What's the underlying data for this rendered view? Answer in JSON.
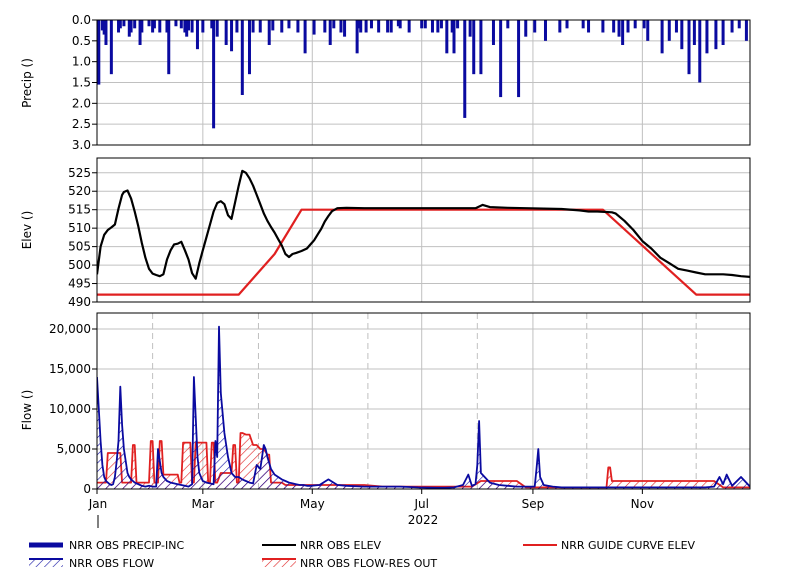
{
  "year_label": "2022",
  "month_ticks": [
    "Jan",
    "Mar",
    "May",
    "Jul",
    "Sep",
    "Nov"
  ],
  "colors": {
    "precip": "#0a0aa0",
    "elev": "#000000",
    "guide": "#e02020",
    "flow": "#0a0aa0",
    "res_out": "#e02020",
    "grid": "#c0c0c0"
  },
  "legend": [
    {
      "label": "NRR OBS PRECIP-INC",
      "style": "thick-line",
      "color": "#0a0aa0"
    },
    {
      "label": "NRR OBS ELEV",
      "style": "line",
      "color": "#000000"
    },
    {
      "label": "NRR GUIDE CURVE ELEV",
      "style": "line",
      "color": "#e02020"
    },
    {
      "label": "NRR OBS FLOW",
      "style": "hatch",
      "color": "#0a0aa0"
    },
    {
      "label": "NRR OBS FLOW-RES OUT",
      "style": "hatch",
      "color": "#e02020"
    }
  ],
  "chart_data": [
    {
      "type": "bar",
      "ylabel": "Precip ()",
      "ylim": [
        0,
        3.0
      ],
      "y_inverted": true,
      "yticks": [
        "0.0",
        "0.5",
        "1.0",
        "1.5",
        "2.0",
        "2.5",
        "3.0"
      ],
      "x_unit": "day of year 2022",
      "series": [
        {
          "name": "NRR OBS PRECIP-INC",
          "x": [
            1,
            2,
            4,
            5,
            6,
            9,
            13,
            14,
            16,
            19,
            20,
            22,
            25,
            26,
            30,
            32,
            33,
            36,
            40,
            41,
            45,
            48,
            50,
            51,
            52,
            54,
            57,
            60,
            65,
            66,
            68,
            73,
            76,
            79,
            82,
            86,
            88,
            92,
            97,
            99,
            104,
            108,
            113,
            117,
            122,
            128,
            131,
            133,
            137,
            139,
            146,
            147,
            148,
            151,
            154,
            158,
            163,
            165,
            169,
            170,
            175,
            182,
            184,
            188,
            191,
            193,
            196,
            199,
            200,
            202,
            206,
            209,
            211,
            215,
            222,
            226,
            230,
            236,
            240,
            245,
            251,
            259,
            263,
            272,
            275,
            283,
            289,
            292,
            294,
            297,
            301,
            306,
            308,
            316,
            320,
            324,
            327,
            331,
            334,
            337,
            341,
            346,
            350,
            355,
            359,
            363
          ],
          "values": [
            1.1,
            1.55,
            0.25,
            0.35,
            0.6,
            1.3,
            0.3,
            0.2,
            0.15,
            0.4,
            0.3,
            0.2,
            0.6,
            0.3,
            0.15,
            0.3,
            0.2,
            0.3,
            0.3,
            1.3,
            0.15,
            0.2,
            0.3,
            0.4,
            0.25,
            0.3,
            0.7,
            0.3,
            0.2,
            2.6,
            0.4,
            0.6,
            0.75,
            0.3,
            1.8,
            1.3,
            0.3,
            0.3,
            0.6,
            0.25,
            0.3,
            0.2,
            0.3,
            0.8,
            0.35,
            0.3,
            0.6,
            0.2,
            0.3,
            0.4,
            0.8,
            0.2,
            0.3,
            0.3,
            0.2,
            0.3,
            0.3,
            0.3,
            0.15,
            0.2,
            0.3,
            0.2,
            0.2,
            0.3,
            0.3,
            0.2,
            0.8,
            0.3,
            0.8,
            0.2,
            2.35,
            0.4,
            1.3,
            1.3,
            0.6,
            1.85,
            0.2,
            1.85,
            0.4,
            0.3,
            0.5,
            0.3,
            0.2,
            0.2,
            0.3,
            0.3,
            0.3,
            0.4,
            0.6,
            0.3,
            0.2,
            0.2,
            0.5,
            0.8,
            0.5,
            0.3,
            0.7,
            1.3,
            0.6,
            1.5,
            0.8,
            0.7,
            0.6,
            0.3,
            0.2,
            0.5
          ]
        }
      ]
    },
    {
      "type": "line",
      "ylabel": "Elev ()",
      "ylim": [
        490,
        529
      ],
      "yticks": [
        490,
        495,
        500,
        505,
        510,
        515,
        520,
        525
      ],
      "x_unit": "day of year 2022",
      "series": [
        {
          "name": "NRR OBS ELEV",
          "x": [
            1,
            3,
            5,
            7,
            9,
            11,
            13,
            15,
            16,
            18,
            20,
            22,
            24,
            26,
            28,
            30,
            32,
            34,
            36,
            38,
            40,
            42,
            44,
            46,
            48,
            50,
            52,
            54,
            56,
            58,
            60,
            62,
            64,
            66,
            68,
            70,
            72,
            74,
            76,
            78,
            80,
            82,
            84,
            86,
            88,
            90,
            92,
            94,
            96,
            98,
            100,
            102,
            104,
            106,
            108,
            110,
            112,
            115,
            118,
            120,
            122,
            124,
            126,
            128,
            130,
            132,
            135,
            140,
            150,
            165,
            180,
            200,
            212,
            216,
            220,
            230,
            240,
            250,
            260,
            270,
            275,
            280,
            288,
            290,
            295,
            300,
            305,
            310,
            315,
            320,
            325,
            330,
            335,
            340,
            345,
            350,
            355,
            360,
            365
          ],
          "values": [
            497.5,
            505,
            508.2,
            509.5,
            510.2,
            511,
            515.3,
            519,
            519.8,
            520.2,
            518,
            514.5,
            510.5,
            506,
            502,
            499,
            497.7,
            497.3,
            497,
            497.5,
            501.5,
            504,
            505.6,
            505.8,
            506.3,
            504,
            501.5,
            497.8,
            496.3,
            500.5,
            504,
            507.5,
            511,
            514.5,
            516.8,
            517.3,
            516.5,
            513.5,
            512.5,
            517,
            521.5,
            525.5,
            525,
            523.5,
            521.5,
            519,
            516.5,
            514,
            512,
            510.3,
            508.8,
            507,
            505.3,
            503,
            502.2,
            503,
            503.3,
            503.8,
            504.5,
            505.6,
            506.7,
            508.3,
            509.8,
            511.8,
            513.3,
            514.6,
            515.4,
            515.5,
            515.4,
            515.4,
            515.4,
            515.4,
            515.4,
            516.3,
            515.7,
            515.5,
            515.4,
            515.3,
            515.2,
            514.8,
            514.5,
            514.5,
            514.3,
            514,
            512,
            509.5,
            506.5,
            504.5,
            502,
            500.5,
            499,
            498.5,
            498,
            497.5,
            497.5,
            497.5,
            497.3,
            497,
            496.8
          ]
        },
        {
          "name": "NRR GUIDE CURVE ELEV",
          "x": [
            1,
            80,
            100,
            115,
            135,
            283,
            335,
            365
          ],
          "values": [
            492,
            492,
            503,
            515,
            515,
            515,
            492,
            492
          ]
        }
      ]
    },
    {
      "type": "area",
      "ylabel": "Flow ()",
      "ylim": [
        0,
        22000
      ],
      "yticks": [
        "0",
        "5,000",
        "10,000",
        "15,000",
        "20,000"
      ],
      "x_unit": "day of year 2022",
      "xticks": [
        "Jan",
        "Mar",
        "May",
        "Jul",
        "Sep",
        "Nov"
      ],
      "xlabel": "2022",
      "series": [
        {
          "name": "NRR OBS FLOW",
          "x": [
            1,
            2,
            3,
            4,
            5,
            6,
            7,
            8,
            9,
            10,
            11,
            12,
            13,
            14,
            15,
            16,
            17,
            18,
            19,
            20,
            21,
            22,
            23,
            24,
            25,
            26,
            28,
            30,
            32,
            34,
            35,
            36,
            37,
            38,
            40,
            42,
            44,
            46,
            48,
            50,
            52,
            54,
            55,
            56,
            57,
            58,
            59,
            60,
            62,
            64,
            66,
            67,
            68,
            69,
            70,
            72,
            74,
            75,
            76,
            78,
            80,
            82,
            84,
            86,
            88,
            90,
            92,
            94,
            95,
            96,
            98,
            100,
            102,
            104,
            106,
            108,
            110,
            112,
            114,
            116,
            118,
            120,
            125,
            130,
            135,
            140,
            150,
            160,
            170,
            180,
            190,
            195,
            200,
            205,
            208,
            210,
            212,
            213,
            214,
            215,
            220,
            225,
            230,
            235,
            240,
            245,
            246,
            247,
            248,
            250,
            255,
            260,
            270,
            280,
            290,
            300,
            310,
            320,
            330,
            340,
            345,
            348,
            350,
            352,
            355,
            360,
            365
          ],
          "values": [
            14000,
            10000,
            6000,
            3000,
            1500,
            1000,
            800,
            600,
            500,
            600,
            1500,
            3500,
            6000,
            12800,
            8000,
            5000,
            3500,
            2000,
            1500,
            1200,
            1000,
            800,
            700,
            600,
            500,
            400,
            300,
            400,
            300,
            300,
            5000,
            3500,
            2000,
            1500,
            1000,
            800,
            700,
            600,
            500,
            400,
            300,
            600,
            14000,
            9000,
            4000,
            2000,
            1500,
            1000,
            800,
            700,
            600,
            6000,
            4000,
            20300,
            12000,
            7000,
            4000,
            3000,
            2000,
            1500,
            1500,
            1200,
            1000,
            800,
            700,
            3000,
            2500,
            5500,
            5000,
            4000,
            2500,
            1800,
            1500,
            1200,
            1000,
            800,
            700,
            600,
            500,
            500,
            400,
            400,
            500,
            1200,
            500,
            400,
            300,
            300,
            300,
            200,
            150,
            150,
            200,
            500,
            1800,
            400,
            600,
            3000,
            8500,
            2000,
            800,
            500,
            400,
            300,
            300,
            300,
            2500,
            5000,
            1500,
            500,
            300,
            200,
            200,
            200,
            200,
            200,
            200,
            200,
            200,
            200,
            300,
            1500,
            600,
            1800,
            400,
            1500,
            300
          ]
        },
        {
          "name": "NRR OBS FLOW-RES OUT",
          "x": [
            1,
            6,
            7,
            14,
            15,
            20,
            21,
            22,
            23,
            30,
            31,
            32,
            33,
            34,
            35,
            36,
            37,
            38,
            40,
            46,
            47,
            48,
            49,
            53,
            54,
            55,
            56,
            62,
            63,
            64,
            65,
            66,
            67,
            68,
            70,
            76,
            77,
            78,
            79,
            80,
            81,
            82,
            84,
            86,
            88,
            90,
            92,
            94,
            96,
            97,
            98,
            99,
            102,
            104,
            106,
            108,
            110,
            120,
            130,
            140,
            150,
            160,
            170,
            180,
            190,
            200,
            210,
            215,
            220,
            225,
            230,
            235,
            240,
            245,
            250,
            255,
            260,
            265,
            270,
            280,
            285,
            286,
            287,
            288,
            290,
            295,
            300,
            305,
            310,
            315,
            320,
            325,
            330,
            335,
            340,
            345,
            350,
            355,
            360,
            365
          ],
          "values": [
            800,
            800,
            4500,
            4500,
            800,
            800,
            5500,
            5500,
            800,
            800,
            6000,
            6000,
            800,
            800,
            800,
            6000,
            6000,
            1800,
            1800,
            1800,
            800,
            800,
            5800,
            5800,
            800,
            800,
            5800,
            5800,
            800,
            800,
            5800,
            5800,
            800,
            800,
            2000,
            2000,
            5500,
            5500,
            800,
            800,
            7000,
            7000,
            6800,
            6800,
            5500,
            5500,
            5000,
            5000,
            4300,
            4300,
            800,
            800,
            800,
            800,
            500,
            500,
            500,
            500,
            500,
            500,
            500,
            300,
            300,
            300,
            300,
            300,
            300,
            1000,
            1000,
            1000,
            1000,
            1000,
            200,
            200,
            200,
            200,
            200,
            200,
            200,
            200,
            200,
            2700,
            2700,
            1000,
            1000,
            1000,
            1000,
            1000,
            1000,
            1000,
            1000,
            1000,
            1000,
            1000,
            1000,
            1000,
            200,
            200,
            200,
            200
          ]
        }
      ]
    }
  ]
}
